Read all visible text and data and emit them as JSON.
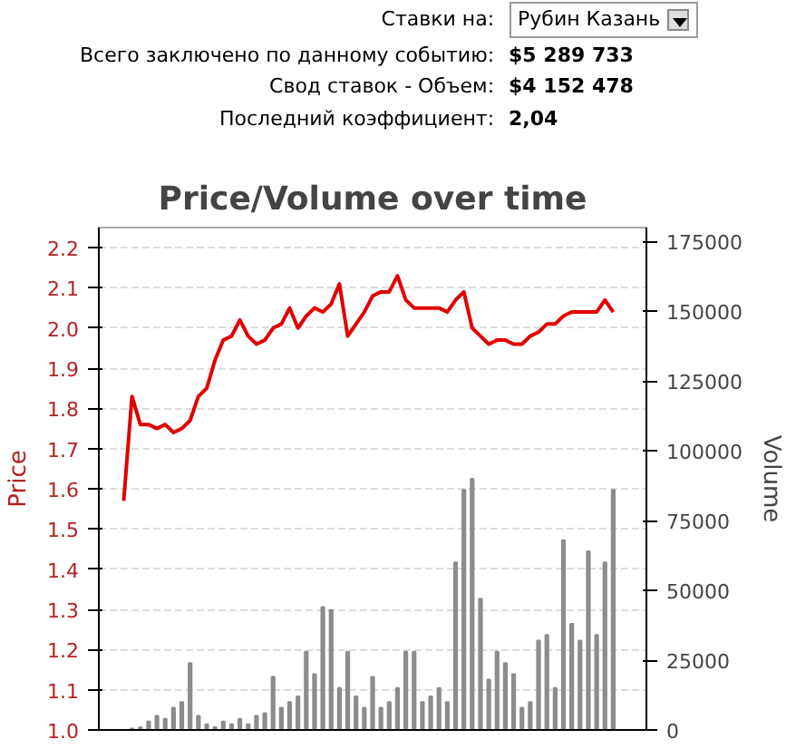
{
  "chart_data": {
    "type": "line",
    "title": "Price/Volume over time",
    "ylabel": "Price",
    "y2label": "Volume",
    "annotations": [
      "Ставки на:",
      "Рубин Казань",
      "Всего заключено по данному событию:",
      "$5 289 733",
      "Свод ставок - Объем:",
      "$4 152 478",
      "Последний коэффициент:",
      "2,04"
    ],
    "categories": [
      null,
      null,
      null,
      null,
      null,
      null,
      null,
      null,
      null,
      null,
      null,
      null,
      null,
      null,
      null,
      null,
      null,
      null,
      null,
      null,
      null,
      null,
      null,
      null,
      null,
      null,
      null,
      null,
      null,
      null,
      null,
      null,
      null,
      null,
      null,
      null,
      null,
      null,
      null,
      null,
      null,
      null,
      null,
      null,
      null,
      null,
      null,
      null,
      null,
      null,
      null,
      null,
      null,
      null,
      null,
      null,
      null,
      null,
      null,
      null
    ],
    "series": [
      {
        "type": "bar",
        "axis": "y2",
        "color": "#8c8c8c",
        "values": [
          0,
          500,
          1000,
          3000,
          5000,
          4000,
          8000,
          10000,
          24000,
          5000,
          2000,
          1000,
          3000,
          2000,
          4000,
          2000,
          5000,
          6000,
          19000,
          8000,
          10000,
          12000,
          28000,
          20000,
          44000,
          43000,
          15000,
          28000,
          12000,
          8000,
          19000,
          8000,
          10000,
          15000,
          28000,
          28000,
          10000,
          12000,
          15000,
          10000,
          60000,
          86000,
          90000,
          47000,
          18000,
          28000,
          24000,
          20000,
          8000,
          10000,
          32000,
          34000,
          15000,
          68000,
          38000,
          32000,
          64000,
          34000,
          60000,
          86000
        ]
      },
      {
        "color": "#e00000",
        "values": [
          1.57,
          1.83,
          1.76,
          1.76,
          1.75,
          1.76,
          1.74,
          1.75,
          1.77,
          1.83,
          1.85,
          1.92,
          1.97,
          1.98,
          2.02,
          1.98,
          1.96,
          1.97,
          2.0,
          2.01,
          2.05,
          2.0,
          2.03,
          2.05,
          2.04,
          2.06,
          2.11,
          1.98,
          2.01,
          2.04,
          2.08,
          2.09,
          2.09,
          2.13,
          2.07,
          2.05,
          2.05,
          2.05,
          2.05,
          2.04,
          2.07,
          2.09,
          2.0,
          1.98,
          1.96,
          1.97,
          1.97,
          1.96,
          1.96,
          1.98,
          1.99,
          2.01,
          2.01,
          2.03,
          2.04,
          2.04,
          2.04,
          2.04,
          2.07,
          2.04
        ]
      }
    ],
    "ylim": [
      1.0,
      2.25
    ],
    "yticks": [
      {
        "value": 1.0,
        "label": "1.0"
      },
      1.1,
      1.2,
      1.3,
      1.4,
      1.5,
      1.6,
      1.7,
      1.8,
      1.9,
      {
        "value": 2.0,
        "label": "2.0"
      },
      2.1,
      2.2
    ],
    "y2lim": [
      0,
      180000
    ],
    "y2ticks": [
      0,
      25000,
      50000,
      75000,
      100000,
      125000,
      150000,
      175000
    ],
    "grid": "y",
    "tick_labels": "y",
    "line_style": "solid"
  }
}
